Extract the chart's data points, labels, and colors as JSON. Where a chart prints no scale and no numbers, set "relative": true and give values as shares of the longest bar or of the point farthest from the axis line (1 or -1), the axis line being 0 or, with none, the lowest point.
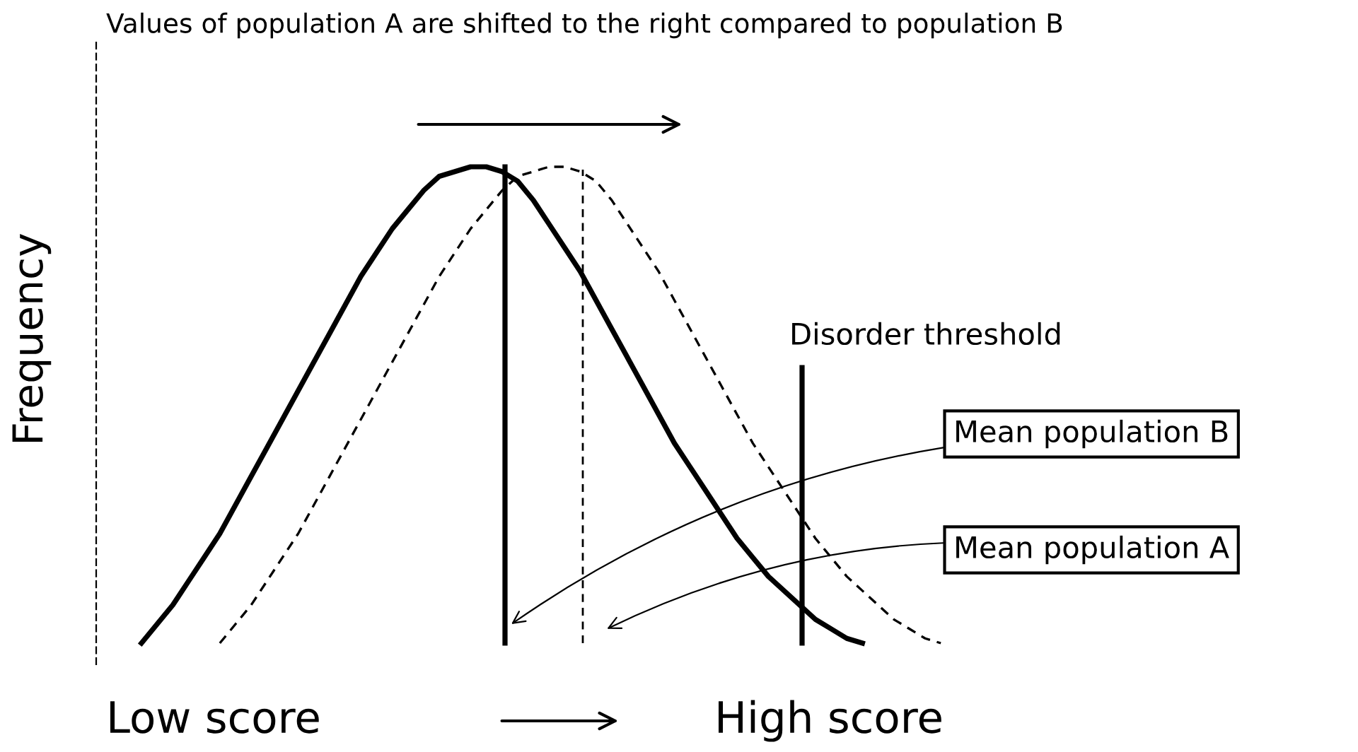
{
  "chart_data": {
    "type": "line",
    "relative": true,
    "title": "Values of population A are shifted to the right compared to population B",
    "ylabel": "Frequency",
    "categories": [
      null,
      null,
      null,
      null,
      null,
      null,
      null,
      null,
      null,
      null,
      null,
      null,
      null,
      null,
      null,
      null,
      null,
      null,
      null,
      null,
      null,
      null,
      null,
      null,
      null,
      null,
      null,
      null,
      null,
      null,
      null,
      null,
      null,
      null,
      null,
      null,
      null,
      null,
      null,
      null,
      null,
      null,
      null,
      null,
      null,
      null,
      null,
      null,
      null,
      null,
      null,
      null
    ],
    "series": [
      {
        "color": "#000000",
        "line_style": "solid",
        "values": [
          0,
          0.04,
          0.08,
          0.13,
          0.18,
          0.23,
          0.29,
          0.35,
          0.41,
          0.47,
          0.53,
          0.59,
          0.65,
          0.71,
          0.77,
          0.82,
          0.87,
          0.91,
          0.95,
          0.98,
          0.99,
          1.0,
          1.0,
          0.99,
          0.97,
          0.93,
          0.88,
          0.83,
          0.78,
          0.72,
          0.66,
          0.6,
          0.54,
          0.48,
          0.42,
          0.37,
          0.32,
          0.27,
          0.22,
          0.18,
          0.14,
          0.11,
          0.08,
          0.05,
          0.03,
          0.01,
          0,
          null,
          null,
          null,
          null,
          null
        ]
      },
      {
        "color": "#000000",
        "line_style": "dashed",
        "values": [
          null,
          null,
          null,
          null,
          null,
          0,
          0.04,
          0.08,
          0.13,
          0.18,
          0.23,
          0.29,
          0.35,
          0.41,
          0.47,
          0.53,
          0.59,
          0.65,
          0.71,
          0.77,
          0.82,
          0.87,
          0.91,
          0.95,
          0.98,
          0.99,
          1.0,
          1.0,
          0.99,
          0.97,
          0.93,
          0.88,
          0.83,
          0.78,
          0.72,
          0.66,
          0.6,
          0.54,
          0.48,
          0.42,
          0.37,
          0.32,
          0.27,
          0.22,
          0.18,
          0.14,
          0.11,
          0.08,
          0.05,
          0.03,
          0.01,
          0
        ]
      }
    ],
    "annotations": [
      "Disorder threshold",
      "Mean population B",
      "Mean population A",
      "Low score",
      "High score"
    ]
  }
}
